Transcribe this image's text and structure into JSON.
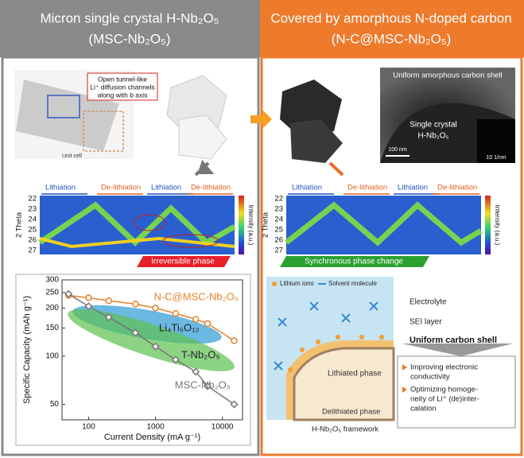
{
  "header": {
    "left_title": "Micron single crystal H-Nb₂O₅",
    "left_subtitle": "(MSC-Nb₂O₅)",
    "right_title": "Covered by amorphous N-doped carbon",
    "right_subtitle": "(N-C@MSC-Nb₂O₅)"
  },
  "structure": {
    "callout": [
      "Open tunnel-like",
      "Li⁺ diffusion channels",
      "along with b axis"
    ],
    "unit_cell": "Unit cell"
  },
  "tem": {
    "shell": "Uniform amorphous carbon shell",
    "crystal": [
      "Single crystal",
      "H-Nb₂O₅"
    ],
    "scale_bar": "100 nm",
    "diffraction_scale": "10 1/nm"
  },
  "xrd": {
    "stages": [
      "Lithiation",
      "De-lithiation",
      "Lithiation",
      "De-lithiation"
    ],
    "y_label": "2 Theta",
    "yticks": [
      "22",
      "23",
      "24",
      "25",
      "26",
      "27"
    ],
    "colorbar_label": "Intensity (a.u.)",
    "left_banner": "Irreversible phase",
    "right_banner": "Synchronous phase change"
  },
  "chart_data": {
    "type": "line",
    "x_label": "Current Density (mA g⁻¹)",
    "y_label": "Specific Capacity (mAh g⁻¹)",
    "x": [
      50,
      100,
      200,
      500,
      1000,
      2000,
      4000,
      6000,
      15000
    ],
    "series": [
      {
        "name": "N-C@MSC-Nb₂O₅",
        "color": "#e8822a",
        "values": [
          240,
          232,
          222,
          212,
          200,
          185,
          170,
          160,
          125
        ]
      },
      {
        "name": "MSC-Nb₂O₅",
        "color": "#777777",
        "values": [
          245,
          205,
          175,
          140,
          115,
          95,
          80,
          65,
          50
        ]
      }
    ],
    "annotations": [
      "Li₄Ti₅O₁₂",
      "T-Nb₂O₅"
    ],
    "xlim": [
      40,
      20000
    ],
    "ylim": [
      40,
      300
    ],
    "xticks": [
      100,
      1000,
      10000
    ],
    "yticks": [
      50,
      100,
      150,
      200,
      250,
      300
    ],
    "log_x": true,
    "log_y": true
  },
  "mechanism": {
    "legend": [
      "Lithium ions",
      "Solvent molecule"
    ],
    "electrolyte": "Electrolyte",
    "sei": "SEI layer",
    "shell": "Uniform carbon shell",
    "lithiated": "Lithiated phase",
    "delithiated": "Delithiated phase",
    "framework": "H-Nb₂O₅ framework",
    "benefits": [
      [
        "Improving electronic",
        "conductivity"
      ],
      [
        "Optimizing homoge-",
        "neity of Li⁺ (de)inter-",
        "calation"
      ]
    ]
  }
}
